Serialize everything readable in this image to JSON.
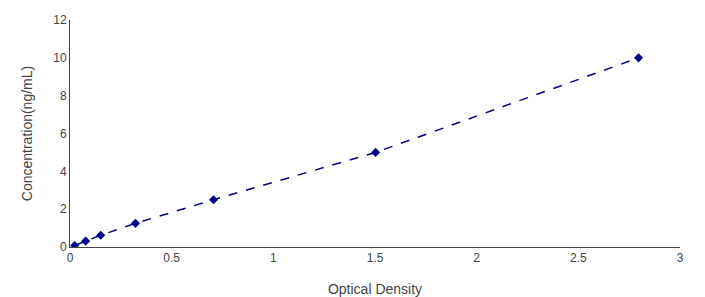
{
  "chart_data": {
    "type": "line",
    "xlabel": "Optical Density",
    "ylabel": "Concentration(ng/mL)",
    "x": [
      0.023,
      0.077,
      0.151,
      0.322,
      0.706,
      1.503,
      2.796
    ],
    "values": [
      0.078,
      0.312,
      0.625,
      1.25,
      2.5,
      5.0,
      10.0
    ],
    "color": "#00008B",
    "marker": "diamond",
    "line_style": "dashed",
    "xlim": [
      0,
      3.0
    ],
    "ylim": [
      0,
      12
    ],
    "xticks": [
      0,
      0.5,
      1,
      1.5,
      2,
      2.5,
      3
    ],
    "yticks": [
      0,
      2,
      4,
      6,
      8,
      10,
      12
    ],
    "grid": false
  }
}
